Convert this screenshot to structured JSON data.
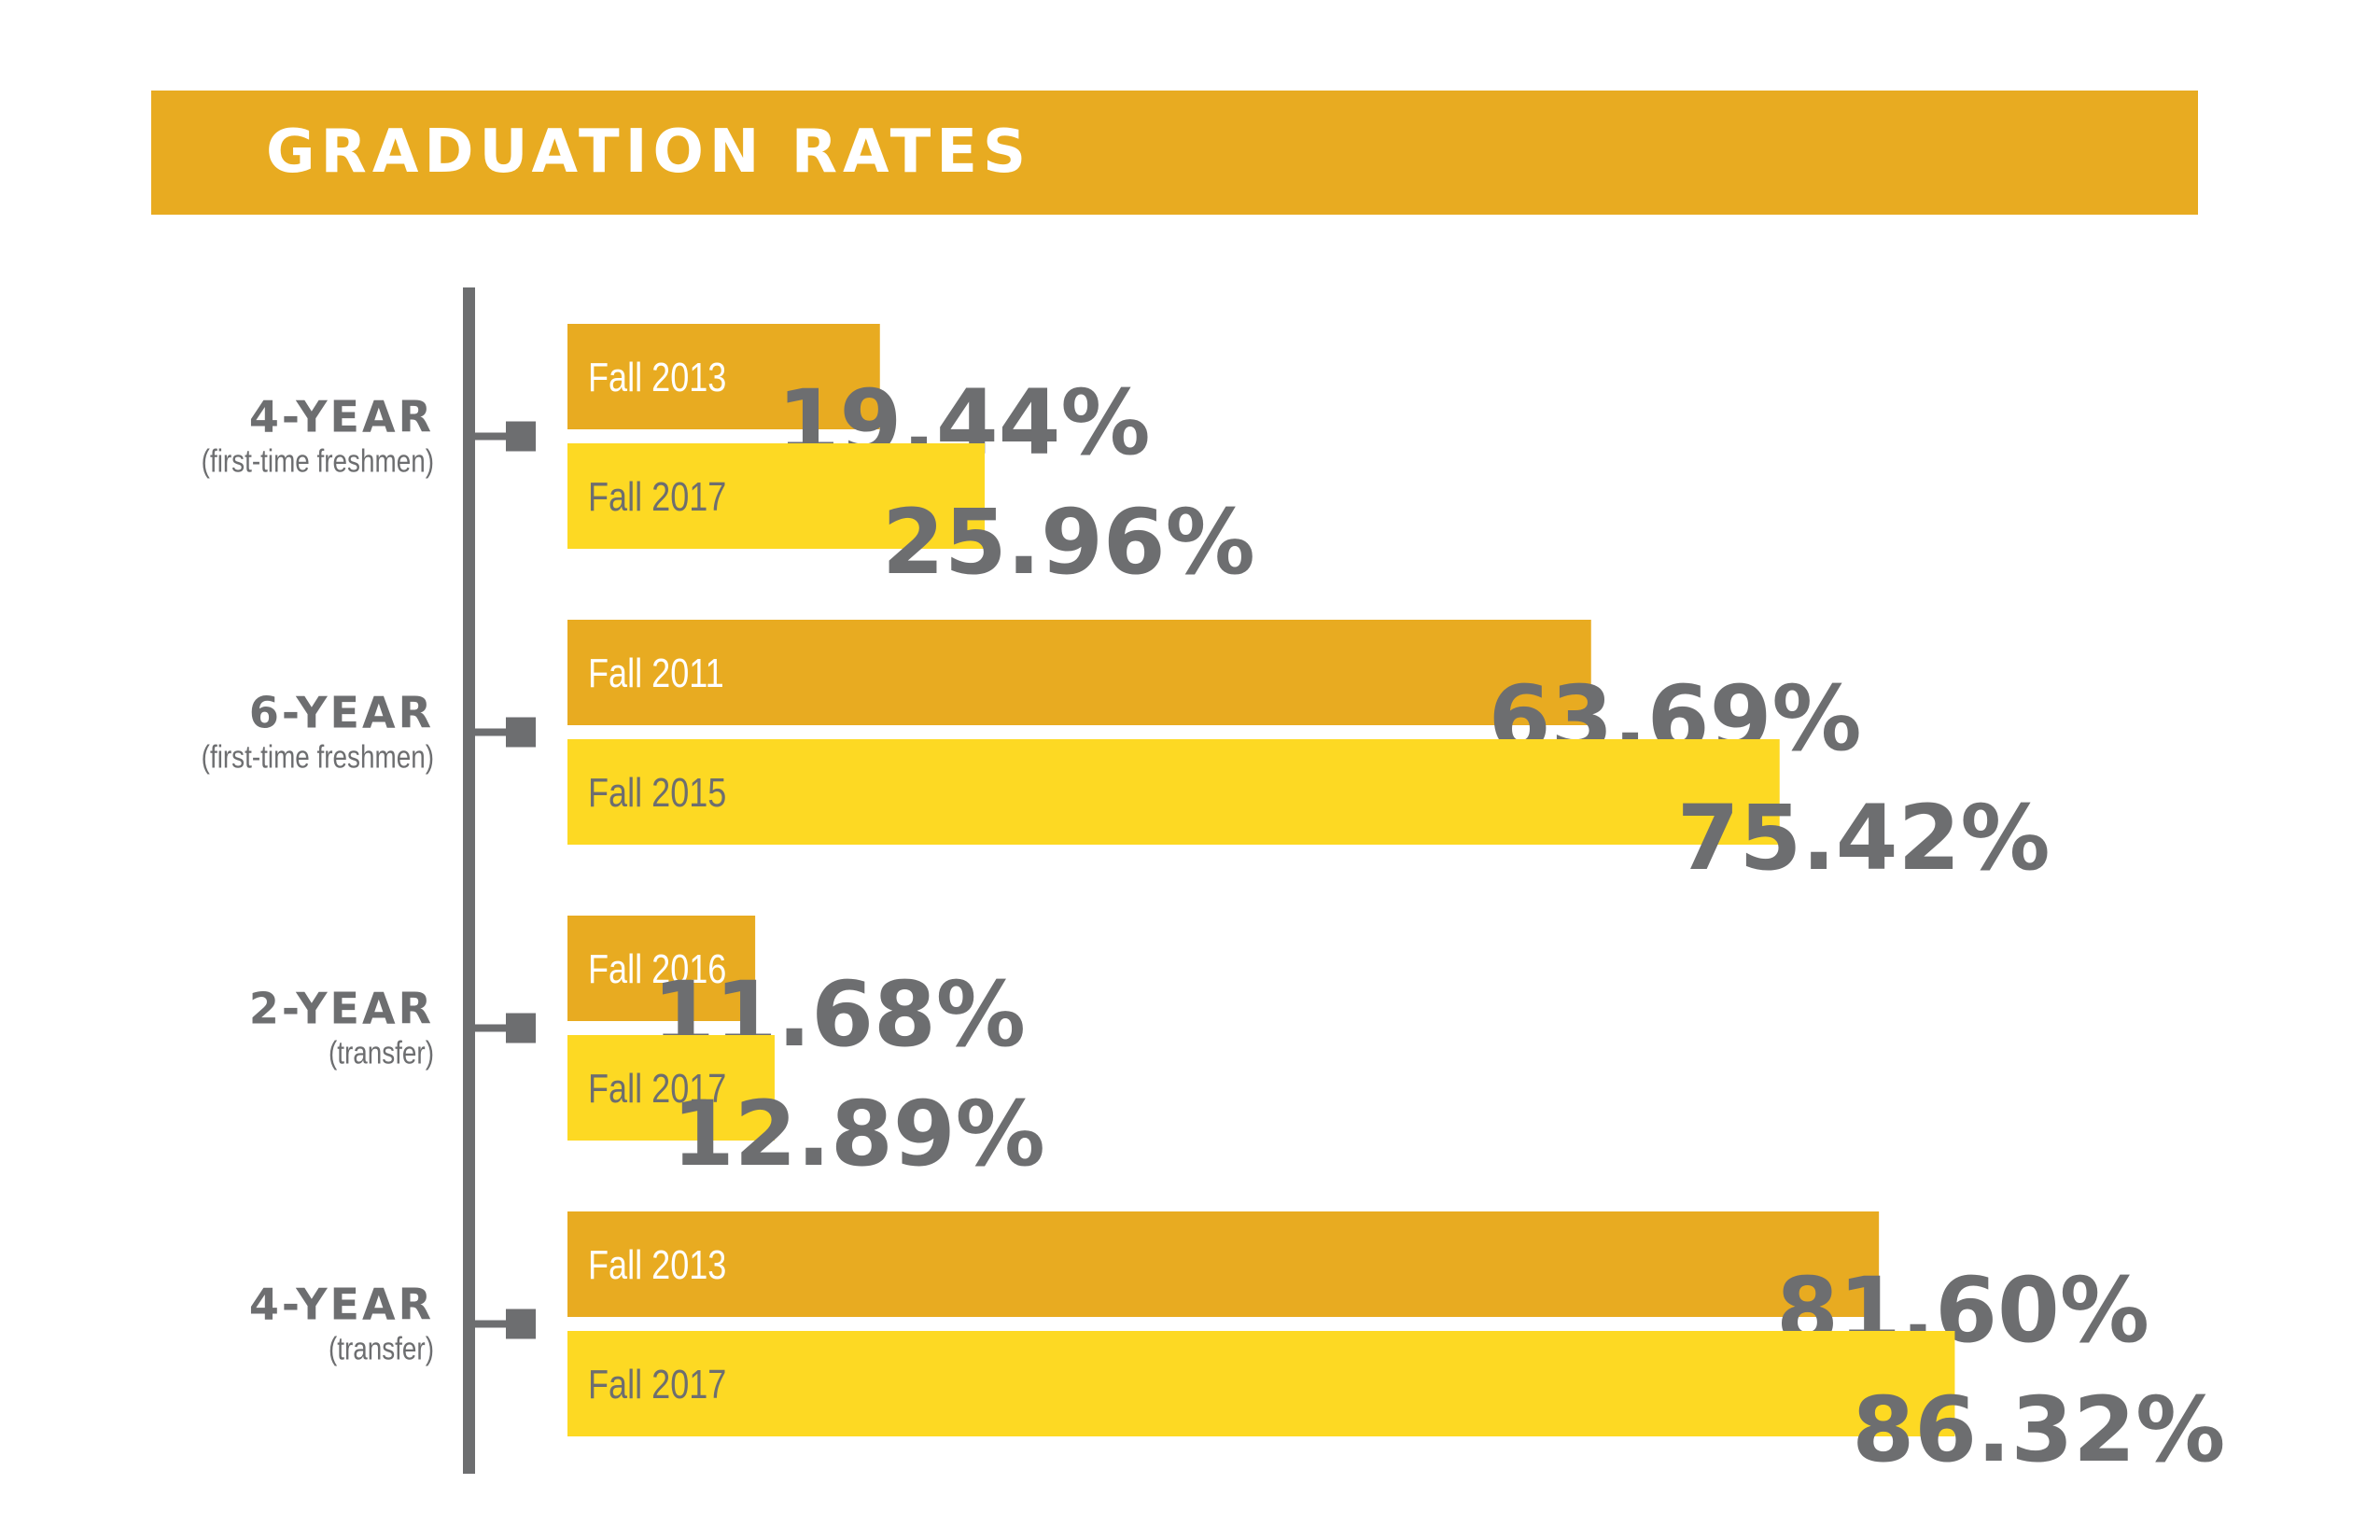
{
  "title": "GRADUATION RATES",
  "colors": {
    "band": "#e8ab21",
    "dark_bar": "#e8ab21",
    "light_bar": "#fdd923",
    "text_gray": "#6d6e70",
    "axis": "#6d6e70"
  },
  "chart_data": {
    "type": "bar",
    "orientation": "horizontal",
    "title": "GRADUATION RATES",
    "xlim": [
      0,
      100
    ],
    "grid": false,
    "groups": [
      {
        "label": "4-YEAR",
        "sublabel": "(first-time freshmen)",
        "bars": [
          {
            "name": "Fall 2013",
            "value": 19.44,
            "display": "19.44%"
          },
          {
            "name": "Fall 2017",
            "value": 25.96,
            "display": "25.96%"
          }
        ]
      },
      {
        "label": "6-YEAR",
        "sublabel": "(first-time freshmen)",
        "bars": [
          {
            "name": "Fall 2011",
            "value": 63.69,
            "display": "63.69%"
          },
          {
            "name": "Fall 2015",
            "value": 75.42,
            "display": "75.42%"
          }
        ]
      },
      {
        "label": "2-YEAR",
        "sublabel": "(transfer)",
        "bars": [
          {
            "name": "Fall 2016",
            "value": 11.68,
            "display": "11.68%"
          },
          {
            "name": "Fall 2017",
            "value": 12.89,
            "display": "12.89%"
          }
        ]
      },
      {
        "label": "4-YEAR",
        "sublabel": "(transfer)",
        "bars": [
          {
            "name": "Fall 2013",
            "value": 81.6,
            "display": "81.60%"
          },
          {
            "name": "Fall 2017",
            "value": 86.32,
            "display": "86.32%"
          }
        ]
      }
    ]
  }
}
